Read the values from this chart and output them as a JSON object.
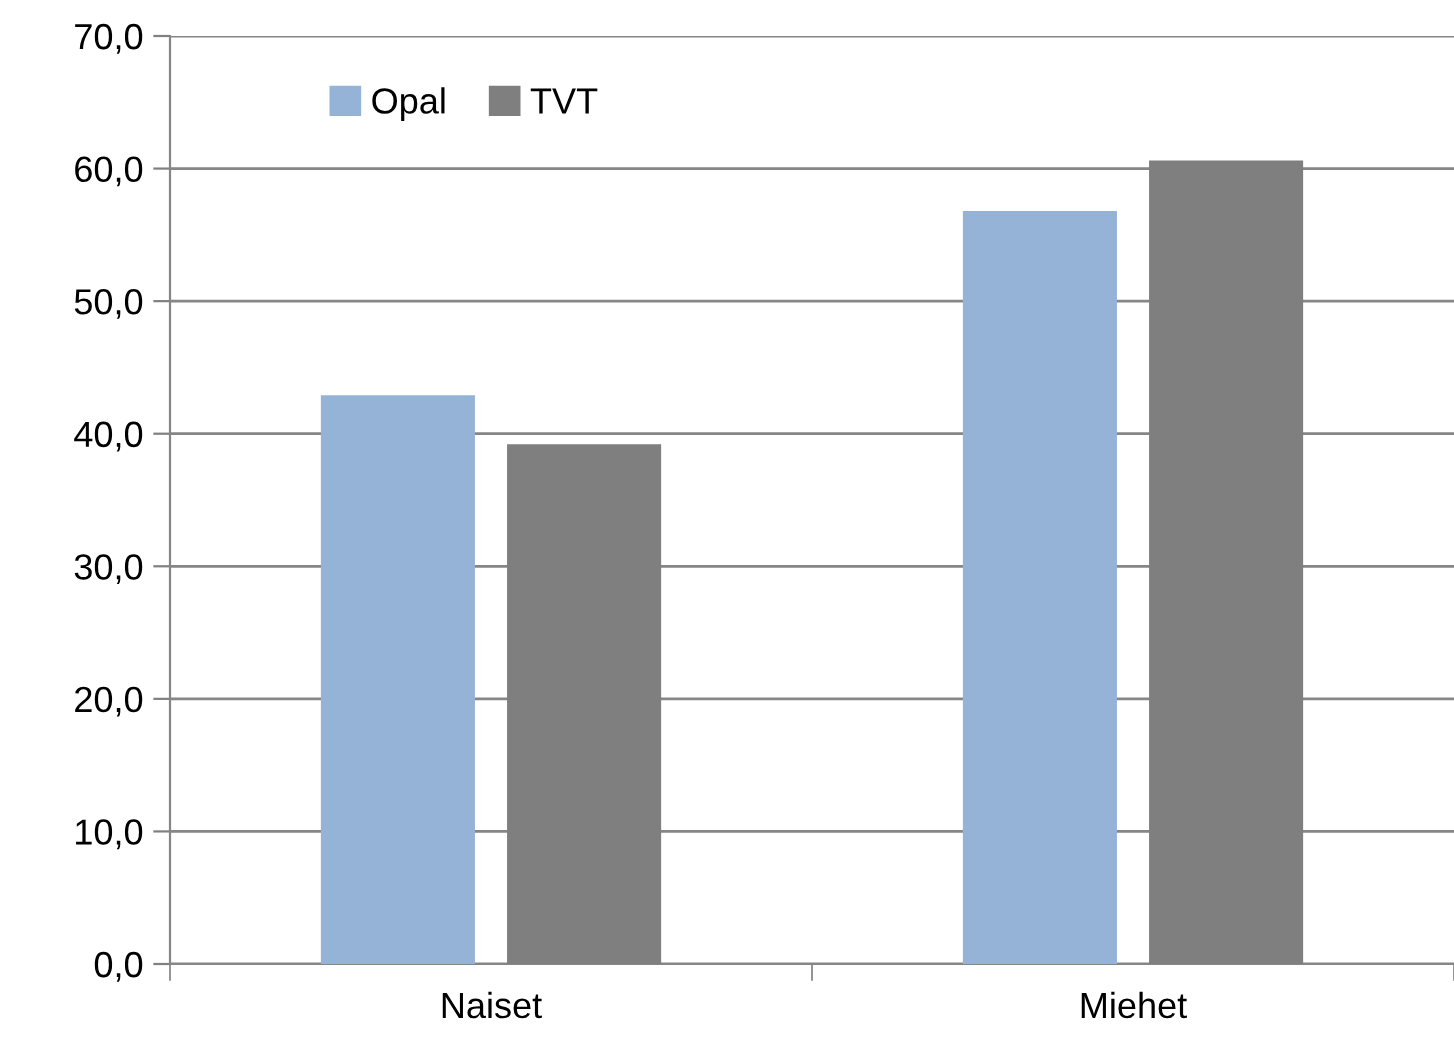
{
  "chart_data": {
    "type": "bar",
    "categories": [
      "Naiset",
      "Miehet"
    ],
    "series": [
      {
        "name": "Opal",
        "color": "#95b3d7",
        "values": [
          42.9,
          56.8
        ]
      },
      {
        "name": "TVT",
        "color": "#7f7f7f",
        "values": [
          39.2,
          60.6
        ]
      }
    ],
    "ylim": [
      0,
      70
    ],
    "yticks": [
      {
        "value": 0,
        "label": "0,0"
      },
      {
        "value": 10,
        "label": "10,0"
      },
      {
        "value": 20,
        "label": "20,0"
      },
      {
        "value": 30,
        "label": "30,0"
      },
      {
        "value": 40,
        "label": "40,0"
      },
      {
        "value": 50,
        "label": "50,0"
      },
      {
        "value": 60,
        "label": "60,0"
      },
      {
        "value": 70,
        "label": "70,0"
      }
    ],
    "grid": "y",
    "legend": "top left"
  }
}
